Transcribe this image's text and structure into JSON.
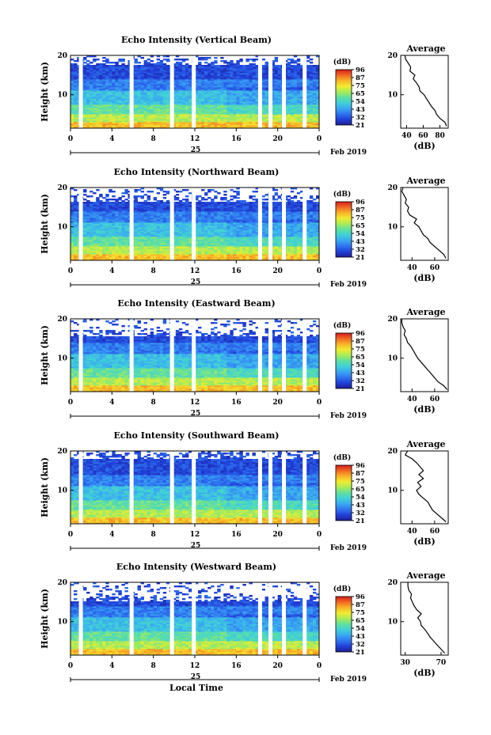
{
  "colormap": [
    "#1e1e96",
    "#2040d8",
    "#2f74f0",
    "#3aa8f2",
    "#40d0d8",
    "#5fe0a0",
    "#a8ec58",
    "#f0ec30",
    "#f8b428",
    "#f06a22",
    "#d61c1c"
  ],
  "chart_data": [
    {
      "type": "heatmap",
      "title": "Echo Intensity (Vertical Beam)",
      "ylabel": "Height (km)",
      "xlabel": "",
      "date_label": "Feb 2019",
      "day_label": "25",
      "x_ticks": [
        "0",
        "4",
        "8",
        "12",
        "16",
        "20",
        "0"
      ],
      "xlim": [
        0,
        24
      ],
      "y_ticks": [
        "20",
        "10"
      ],
      "ylim": [
        1.5,
        20
      ],
      "colorbar_title": "(dB)",
      "colorbar_ticks": [
        "96",
        "87",
        "75",
        "65",
        "54",
        "43",
        "32",
        "21"
      ],
      "gaps_hours": [
        1.0,
        5.9,
        9.8,
        11.9,
        18.3,
        19.3,
        20.6,
        22.6
      ],
      "blank_top_km": 17.5,
      "profile": {
        "title": "Average",
        "xlabel": "(dB)",
        "x_ticks": [
          "40",
          "60",
          "80"
        ],
        "xlim": [
          33,
          90
        ],
        "y_ticks": [
          "20",
          "10"
        ],
        "ylim": [
          1.5,
          20
        ],
        "height_km": [
          2,
          3,
          4,
          5,
          6,
          7,
          8,
          9,
          10,
          11,
          12,
          13,
          14,
          15,
          16,
          17,
          18,
          19,
          20
        ],
        "values_db": [
          88,
          86,
          80,
          76,
          74,
          70,
          67,
          64,
          61,
          56,
          55,
          52,
          48,
          50,
          44,
          45,
          42,
          39,
          38
        ]
      }
    },
    {
      "type": "heatmap",
      "title": "Echo Intensity (Northward Beam)",
      "ylabel": "Height (km)",
      "xlabel": "",
      "date_label": "Feb 2019",
      "day_label": "25",
      "x_ticks": [
        "0",
        "4",
        "8",
        "12",
        "16",
        "20",
        "0"
      ],
      "xlim": [
        0,
        24
      ],
      "y_ticks": [
        "20",
        "10"
      ],
      "ylim": [
        1.5,
        20
      ],
      "colorbar_title": "(dB)",
      "colorbar_ticks": [
        "96",
        "87",
        "75",
        "65",
        "54",
        "43",
        "32",
        "21"
      ],
      "gaps_hours": [
        1.0,
        5.9,
        9.8,
        11.9,
        18.3,
        19.3,
        20.6,
        22.6
      ],
      "blank_top_km": 16.5,
      "profile": {
        "title": "Average",
        "xlabel": "(dB)",
        "x_ticks": [
          "40",
          "60"
        ],
        "xlim": [
          30,
          72
        ],
        "y_ticks": [
          "20",
          "10"
        ],
        "ylim": [
          1.5,
          20
        ],
        "height_km": [
          2,
          3,
          4,
          5,
          6,
          7,
          8,
          9,
          10,
          11,
          12,
          13,
          14,
          15,
          16,
          17,
          18,
          19,
          20
        ],
        "values_db": [
          70,
          68,
          64,
          60,
          56,
          54,
          50,
          48,
          46,
          42,
          44,
          38,
          36,
          37,
          34,
          35,
          33,
          31,
          32
        ]
      }
    },
    {
      "type": "heatmap",
      "title": "Echo Intensity (Eastward Beam)",
      "ylabel": "Height (km)",
      "xlabel": "",
      "date_label": "Feb 2019",
      "day_label": "25",
      "x_ticks": [
        "0",
        "4",
        "8",
        "12",
        "16",
        "20",
        "0"
      ],
      "xlim": [
        0,
        24
      ],
      "y_ticks": [
        "20",
        "10"
      ],
      "ylim": [
        1.5,
        20
      ],
      "colorbar_title": "(dB)",
      "colorbar_ticks": [
        "96",
        "87",
        "75",
        "65",
        "54",
        "43",
        "32",
        "21"
      ],
      "gaps_hours": [
        1.0,
        5.9,
        9.8,
        11.9,
        18.3,
        19.3,
        20.6,
        22.6
      ],
      "blank_top_km": 15.5,
      "profile": {
        "title": "Average",
        "xlabel": "(dB)",
        "x_ticks": [
          "40",
          "60"
        ],
        "xlim": [
          30,
          72
        ],
        "y_ticks": [
          "20",
          "10"
        ],
        "ylim": [
          1.5,
          20
        ],
        "height_km": [
          2,
          3,
          4,
          5,
          6,
          7,
          8,
          9,
          10,
          11,
          12,
          13,
          14,
          15,
          16,
          17,
          18,
          19,
          20
        ],
        "values_db": [
          71,
          68,
          63,
          60,
          57,
          54,
          51,
          48,
          45,
          43,
          41,
          39,
          36,
          35,
          33,
          34,
          32,
          31,
          31
        ]
      }
    },
    {
      "type": "heatmap",
      "title": "Echo Intensity (Southward Beam)",
      "ylabel": "Height (km)",
      "xlabel": "",
      "date_label": "Feb 2019",
      "day_label": "25",
      "x_ticks": [
        "0",
        "4",
        "8",
        "12",
        "16",
        "20",
        "0"
      ],
      "xlim": [
        0,
        24
      ],
      "y_ticks": [
        "20",
        "10"
      ],
      "ylim": [
        1.5,
        20
      ],
      "colorbar_title": "(dB)",
      "colorbar_ticks": [
        "96",
        "87",
        "75",
        "65",
        "54",
        "43",
        "32",
        "21"
      ],
      "gaps_hours": [
        1.0,
        5.9,
        9.8,
        11.9,
        18.3,
        19.3,
        20.6,
        22.6
      ],
      "blank_top_km": 18.0,
      "profile": {
        "title": "Average",
        "xlabel": "(dB)",
        "x_ticks": [
          "40",
          "60"
        ],
        "xlim": [
          30,
          72
        ],
        "y_ticks": [
          "20",
          "10"
        ],
        "ylim": [
          1.5,
          20
        ],
        "height_km": [
          2,
          3,
          4,
          5,
          6,
          7,
          8,
          9,
          10,
          11,
          12,
          13,
          14,
          15,
          16,
          17,
          18,
          19,
          20
        ],
        "values_db": [
          70,
          66,
          62,
          58,
          56,
          54,
          50,
          46,
          44,
          48,
          45,
          50,
          46,
          50,
          47,
          44,
          40,
          34,
          36
        ]
      }
    },
    {
      "type": "heatmap",
      "title": "Echo Intensity (Westward Beam)",
      "ylabel": "Height (km)",
      "xlabel": "Local Time",
      "date_label": "Feb 2019",
      "day_label": "25",
      "x_ticks": [
        "0",
        "4",
        "8",
        "12",
        "16",
        "20",
        "0"
      ],
      "xlim": [
        0,
        24
      ],
      "y_ticks": [
        "20",
        "10"
      ],
      "ylim": [
        1.5,
        20
      ],
      "colorbar_title": "(dB)",
      "colorbar_ticks": [
        "96",
        "87",
        "75",
        "65",
        "54",
        "43",
        "32",
        "21"
      ],
      "gaps_hours": [
        1.0,
        5.9,
        9.8,
        11.9,
        18.3,
        19.3,
        20.6,
        22.6
      ],
      "blank_top_km": 15.0,
      "profile": {
        "title": "Average",
        "xlabel": "(dB)",
        "x_ticks": [
          "30",
          "70"
        ],
        "xlim": [
          25,
          78
        ],
        "y_ticks": [
          "20",
          "10"
        ],
        "ylim": [
          1.5,
          20
        ],
        "height_km": [
          2,
          3,
          4,
          5,
          6,
          7,
          8,
          9,
          10,
          11,
          12,
          13,
          14,
          15,
          16,
          17,
          18,
          19,
          20
        ],
        "values_db": [
          74,
          70,
          66,
          62,
          58,
          55,
          52,
          48,
          47,
          44,
          48,
          43,
          40,
          38,
          36,
          37,
          34,
          33,
          33
        ]
      }
    }
  ]
}
